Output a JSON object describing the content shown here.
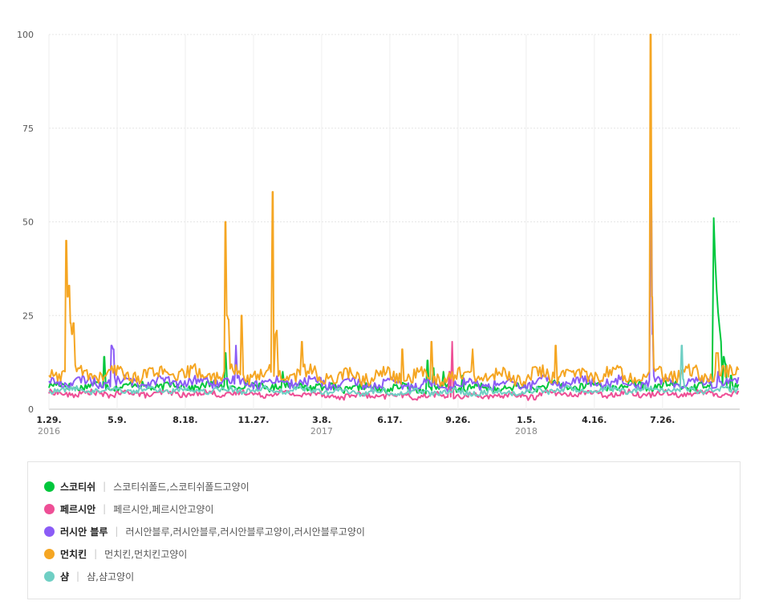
{
  "chart_data": {
    "type": "line",
    "y_ticks": [
      "100",
      "75",
      "50",
      "25",
      "0"
    ],
    "ylim": [
      0,
      100
    ],
    "x_ticks": [
      {
        "label": "1.29.",
        "year": "2016",
        "week": 0
      },
      {
        "label": "5.9.",
        "year": "",
        "week": 14
      },
      {
        "label": "8.18.",
        "year": "",
        "week": 28
      },
      {
        "label": "11.27.",
        "year": "",
        "week": 42
      },
      {
        "label": "3.8.",
        "year": "2017",
        "week": 56
      },
      {
        "label": "6.17.",
        "year": "",
        "week": 70
      },
      {
        "label": "9.26.",
        "year": "",
        "week": 84
      },
      {
        "label": "1.5.",
        "year": "2018",
        "week": 98
      },
      {
        "label": "4.16.",
        "year": "",
        "week": 112
      },
      {
        "label": "7.26.",
        "year": "",
        "week": 126
      }
    ],
    "x_range_weeks": [
      0,
      141.8
    ],
    "grid": "on",
    "series": [
      {
        "name": "스코티쉬",
        "terms": "스코티쉬폴드,스코티쉬폴드고양이",
        "color": "#00c73c",
        "base": 6,
        "noise": 2,
        "points": [
          [
            11.3,
            14
          ],
          [
            36.2,
            15
          ],
          [
            48,
            10
          ],
          [
            77.8,
            13
          ],
          [
            79,
            11
          ],
          [
            81,
            10
          ],
          [
            85,
            9
          ],
          [
            136.5,
            51
          ],
          [
            136.8,
            40
          ],
          [
            137.1,
            32
          ],
          [
            137.4,
            26
          ],
          [
            137.7,
            22
          ],
          [
            138,
            18
          ],
          [
            138.5,
            14
          ],
          [
            139,
            12
          ],
          [
            140,
            9
          ]
        ]
      },
      {
        "name": "페르시안",
        "terms": "페르시안,페르시안고양이",
        "color": "#ee4f96",
        "base": 4,
        "noise": 1.5,
        "points": [
          [
            82.8,
            18
          ],
          [
            82.3,
            10
          ]
        ]
      },
      {
        "name": "러시안 블루",
        "terms": "러시안블루,러시안블루,러시안블루고양이,러시안블루고양이",
        "color": "#8b5cf6",
        "base": 7,
        "noise": 2.5,
        "points": [
          [
            12.8,
            17
          ],
          [
            13.3,
            16
          ],
          [
            38.4,
            17
          ],
          [
            123.7,
            58
          ],
          [
            124,
            20
          ],
          [
            137.5,
            10
          ]
        ]
      },
      {
        "name": "먼치킨",
        "terms": "먼치킨,먼치킨고양이",
        "color": "#f5a623",
        "base": 9,
        "noise": 3.5,
        "points": [
          [
            3.5,
            45
          ],
          [
            3.8,
            30
          ],
          [
            4.1,
            33
          ],
          [
            4.4,
            23
          ],
          [
            4.7,
            20
          ],
          [
            5,
            23
          ],
          [
            36.2,
            50
          ],
          [
            36.5,
            25
          ],
          [
            36.8,
            24
          ],
          [
            39.5,
            25
          ],
          [
            46,
            58
          ],
          [
            46.5,
            20
          ],
          [
            46.8,
            21
          ],
          [
            52,
            18
          ],
          [
            72.5,
            16
          ],
          [
            78.5,
            18
          ],
          [
            87,
            16
          ],
          [
            104,
            17
          ],
          [
            123.5,
            100
          ],
          [
            123.8,
            30
          ],
          [
            137,
            15
          ],
          [
            137.3,
            15
          ]
        ]
      },
      {
        "name": "샴",
        "terms": "샴,샴고양이",
        "color": "#6fcfc4",
        "base": 5,
        "noise": 1.5,
        "points": [
          [
            130,
            17
          ],
          [
            130.3,
            8
          ]
        ]
      }
    ]
  }
}
